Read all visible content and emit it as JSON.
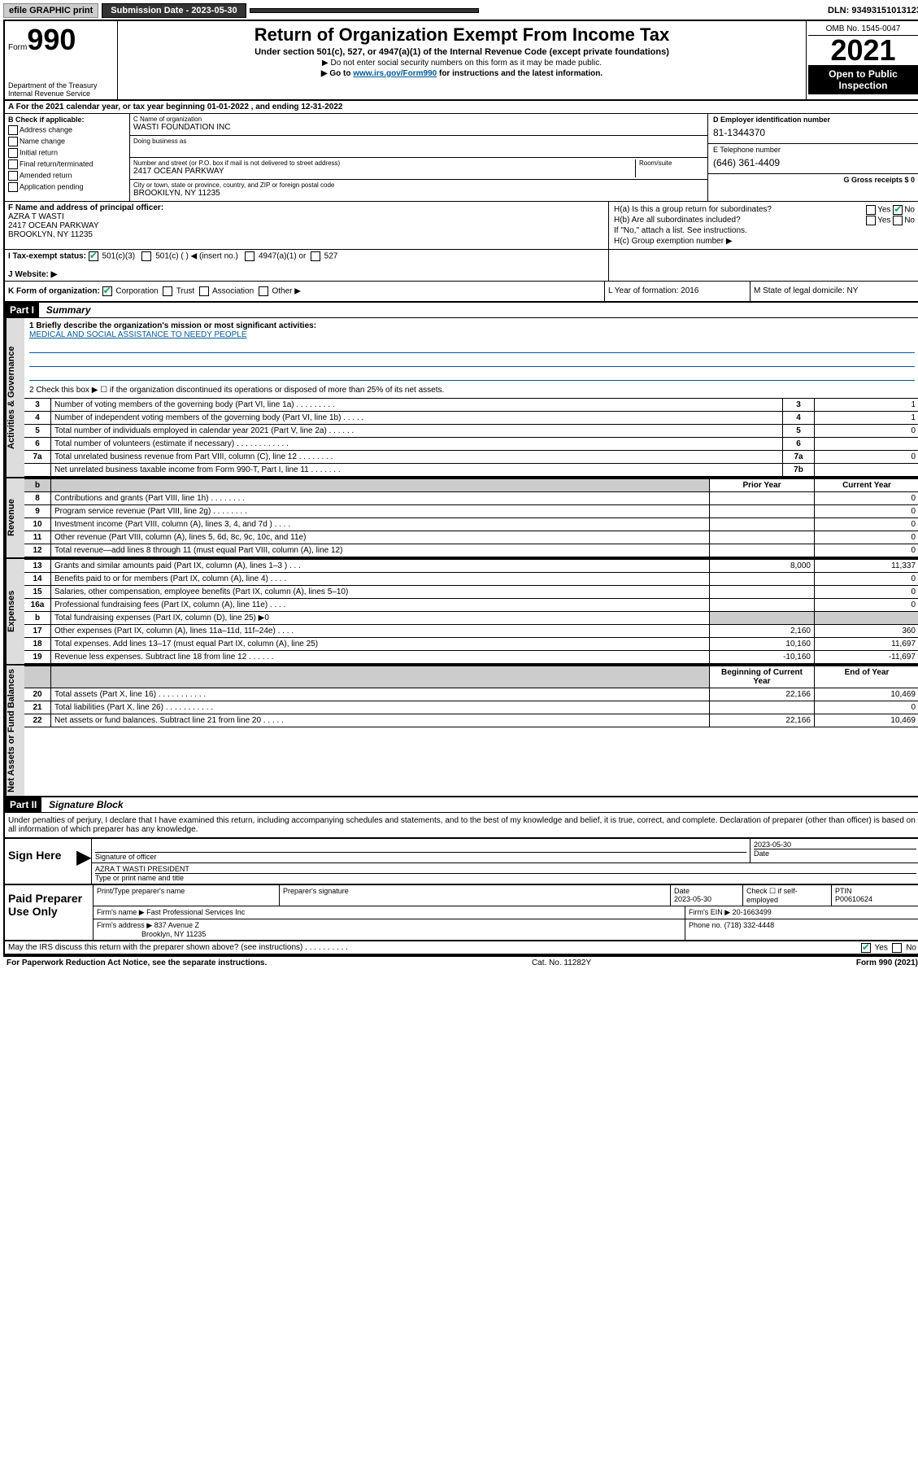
{
  "topbar": {
    "efile": "efile GRAPHIC print",
    "subdate_label": "Submission Date - 2023-05-30",
    "dln": "DLN: 93493151013123"
  },
  "header": {
    "form_prefix": "Form",
    "form_num": "990",
    "dept": "Department of the Treasury Internal Revenue Service",
    "title": "Return of Organization Exempt From Income Tax",
    "sub": "Under section 501(c), 527, or 4947(a)(1) of the Internal Revenue Code (except private foundations)",
    "line1": "▶ Do not enter social security numbers on this form as it may be made public.",
    "line2_a": "▶ Go to ",
    "line2_link": "www.irs.gov/Form990",
    "line2_b": " for instructions and the latest information.",
    "omb": "OMB No. 1545-0047",
    "year": "2021",
    "open": "Open to Public Inspection"
  },
  "rowA": "A For the 2021 calendar year, or tax year beginning 01-01-2022   , and ending 12-31-2022",
  "colB": {
    "label": "B Check if applicable:",
    "items": [
      "Address change",
      "Name change",
      "Initial return",
      "Final return/terminated",
      "Amended return",
      "Application pending"
    ]
  },
  "colC": {
    "name_label": "C Name of organization",
    "name": "WASTI FOUNDATION INC",
    "dba_label": "Doing business as",
    "addr_label": "Number and street (or P.O. box if mail is not delivered to street address)",
    "addr": "2417 OCEAN PARKWAY",
    "room_label": "Room/suite",
    "city_label": "City or town, state or province, country, and ZIP or foreign postal code",
    "city": "BROOKILYN, NY  11235"
  },
  "colD": {
    "ein_label": "D Employer identification number",
    "ein": "81-1344370",
    "tel_label": "E Telephone number",
    "tel": "(646) 361-4409",
    "gross_label": "G Gross receipts $ 0"
  },
  "colF": {
    "label": "F  Name and address of principal officer:",
    "name": "AZRA T WASTI",
    "addr1": "2417 OCEAN PARKWAY",
    "addr2": "BROOKLYN, NY  11235"
  },
  "colH": {
    "ha": "H(a)  Is this a group return for subordinates?",
    "hb": "H(b)  Are all subordinates included?",
    "hb2": "If \"No,\" attach a list. See instructions.",
    "hc": "H(c)  Group exemption number ▶",
    "yes": "Yes",
    "no": "No"
  },
  "rowI": {
    "label": "I    Tax-exempt status:",
    "o1": "501(c)(3)",
    "o2": "501(c) (  ) ◀ (insert no.)",
    "o3": "4947(a)(1) or",
    "o4": "527"
  },
  "rowJ": {
    "label": "J   Website: ▶"
  },
  "rowK": {
    "label": "K Form of organization:",
    "o1": "Corporation",
    "o2": "Trust",
    "o3": "Association",
    "o4": "Other ▶",
    "l": "L Year of formation: 2016",
    "m": "M State of legal domicile: NY"
  },
  "part1": {
    "hdr": "Part I",
    "title": "Summary",
    "tabs": {
      "act": "Activities & Governance",
      "rev": "Revenue",
      "exp": "Expenses",
      "net": "Net Assets or Fund Balances"
    },
    "line1_label": "1  Briefly describe the organization's mission or most significant activities:",
    "mission": "MEDICAL AND SOCIAL ASSISTANCE TO NEEDY PEOPLE",
    "line2": "2   Check this box ▶ ☐  if the organization discontinued its operations or disposed of more than 25% of its net assets.",
    "lines_gov": [
      {
        "n": "3",
        "d": "Number of voting members of the governing body (Part VI, line 1a)   .    .    .    .    .    .    .    .    .",
        "b": "3",
        "v": "1"
      },
      {
        "n": "4",
        "d": "Number of independent voting members of the governing body (Part VI, line 1b)    .    .    .    .    .",
        "b": "4",
        "v": "1"
      },
      {
        "n": "5",
        "d": "Total number of individuals employed in calendar year 2021 (Part V, line 2a)    .    .    .    .    .    .",
        "b": "5",
        "v": "0"
      },
      {
        "n": "6",
        "d": "Total number of volunteers (estimate if necessary)   .    .    .    .    .    .    .    .    .    .    .    .",
        "b": "6",
        "v": ""
      },
      {
        "n": "7a",
        "d": "Total unrelated business revenue from Part VIII, column (C), line 12   .    .    .    .    .    .    .    .",
        "b": "7a",
        "v": "0"
      },
      {
        "n": "",
        "d": "Net unrelated business taxable income from Form 990-T, Part I, line 11   .    .    .    .    .    .    .",
        "b": "7b",
        "v": ""
      }
    ],
    "col_prior": "Prior Year",
    "col_curr": "Current Year",
    "lines_rev": [
      {
        "n": "8",
        "d": "Contributions and grants (Part VIII, line 1h)    .    .    .    .    .    .    .    .",
        "p": "",
        "c": "0"
      },
      {
        "n": "9",
        "d": "Program service revenue (Part VIII, line 2g)    .    .    .    .    .    .    .    .",
        "p": "",
        "c": "0"
      },
      {
        "n": "10",
        "d": "Investment income (Part VIII, column (A), lines 3, 4, and 7d )    .    .    .    .",
        "p": "",
        "c": "0"
      },
      {
        "n": "11",
        "d": "Other revenue (Part VIII, column (A), lines 5, 6d, 8c, 9c, 10c, and 11e)",
        "p": "",
        "c": "0"
      },
      {
        "n": "12",
        "d": "Total revenue—add lines 8 through 11 (must equal Part VIII, column (A), line 12)",
        "p": "",
        "c": "0"
      }
    ],
    "lines_exp": [
      {
        "n": "13",
        "d": "Grants and similar amounts paid (Part IX, column (A), lines 1–3 )   .    .    .",
        "p": "8,000",
        "c": "11,337"
      },
      {
        "n": "14",
        "d": "Benefits paid to or for members (Part IX, column (A), line 4)   .    .    .    .",
        "p": "",
        "c": "0"
      },
      {
        "n": "15",
        "d": "Salaries, other compensation, employee benefits (Part IX, column (A), lines 5–10)",
        "p": "",
        "c": "0"
      },
      {
        "n": "16a",
        "d": "Professional fundraising fees (Part IX, column (A), line 11e)    .    .    .    .",
        "p": "",
        "c": "0"
      },
      {
        "n": "b",
        "d": "Total fundraising expenses (Part IX, column (D), line 25) ▶0",
        "p": "shade",
        "c": "shade"
      },
      {
        "n": "17",
        "d": "Other expenses (Part IX, column (A), lines 11a–11d, 11f–24e)   .    .    .    .",
        "p": "2,160",
        "c": "360"
      },
      {
        "n": "18",
        "d": "Total expenses. Add lines 13–17 (must equal Part IX, column (A), line 25)",
        "p": "10,160",
        "c": "11,697"
      },
      {
        "n": "19",
        "d": "Revenue less expenses. Subtract line 18 from line 12   .    .    .    .    .    .",
        "p": "-10,160",
        "c": "-11,697"
      }
    ],
    "col_begin": "Beginning of Current Year",
    "col_end": "End of Year",
    "lines_net": [
      {
        "n": "20",
        "d": "Total assets (Part X, line 16)   .    .    .    .    .    .    .    .    .    .    .",
        "p": "22,166",
        "c": "10,469"
      },
      {
        "n": "21",
        "d": "Total liabilities (Part X, line 26)   .    .    .    .    .    .    .    .    .    .    .",
        "p": "",
        "c": "0"
      },
      {
        "n": "22",
        "d": "Net assets or fund balances. Subtract line 21 from line 20   .    .    .    .    .",
        "p": "22,166",
        "c": "10,469"
      }
    ]
  },
  "part2": {
    "hdr": "Part II",
    "title": "Signature Block",
    "intro": "Under penalties of perjury, I declare that I have examined this return, including accompanying schedules and statements, and to the best of my knowledge and belief, it is true, correct, and complete. Declaration of preparer (other than officer) is based on all information of which preparer has any knowledge.",
    "sign_here": "Sign Here",
    "sig_label": "Signature of officer",
    "date_val": "2023-05-30",
    "date_label": "Date",
    "officer": "AZRA T WASTI PRESIDENT",
    "officer_label": "Type or print name and title",
    "paid": "Paid Preparer Use Only",
    "prep_name_label": "Print/Type preparer's name",
    "prep_sig_label": "Preparer's signature",
    "prep_date_label": "Date",
    "prep_date": "2023-05-30",
    "prep_check": "Check ☐ if self-employed",
    "ptin_label": "PTIN",
    "ptin": "P00610624",
    "firm_name_label": "Firm's name    ▶",
    "firm_name": "Fast Professional Services Inc",
    "firm_ein_label": "Firm's EIN ▶",
    "firm_ein": "20-1663499",
    "firm_addr_label": "Firm's address ▶",
    "firm_addr1": "837 Avenue Z",
    "firm_addr2": "Brooklyn, NY  11235",
    "phone_label": "Phone no.",
    "phone": "(718) 332-4448",
    "discuss": "May the IRS discuss this return with the preparer shown above? (see instructions)    .    .    .    .    .    .    .    .    .    ."
  },
  "footer": {
    "left": "For Paperwork Reduction Act Notice, see the separate instructions.",
    "mid": "Cat. No. 11282Y",
    "right": "Form 990 (2021)"
  }
}
